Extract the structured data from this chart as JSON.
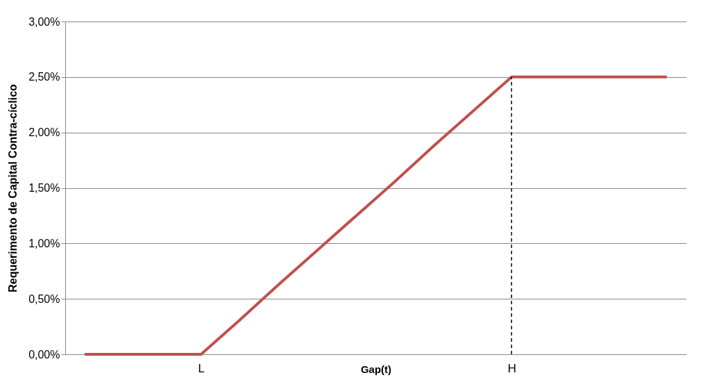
{
  "chart_data": {
    "type": "line",
    "xlabel": "Gap(t)",
    "ylabel": "Requerimento de Capital Contra-cíclico",
    "categories": [
      null,
      null,
      null,
      "L",
      null,
      null,
      null,
      null,
      null,
      null,
      null,
      "H",
      null,
      null,
      null,
      null
    ],
    "series": [
      {
        "color": "#c0504d",
        "values": [
          0,
          0,
          0,
          0,
          0.31,
          0.63,
          0.94,
          1.25,
          1.56,
          1.88,
          2.19,
          2.5,
          2.5,
          2.5,
          2.5,
          2.5
        ]
      }
    ],
    "ylim": [
      0,
      3
    ],
    "yticks": [
      {
        "value": 0,
        "label": "0,00%"
      },
      {
        "value": 0.5,
        "label": "0,50%"
      },
      {
        "value": 1,
        "label": "1,00%"
      },
      {
        "value": 1.5,
        "label": "1,50%"
      },
      {
        "value": 2,
        "label": "2,00%"
      },
      {
        "value": 2.5,
        "label": "2,50%"
      },
      {
        "value": 3,
        "label": "3,00%"
      }
    ],
    "grid": "y",
    "marker": "none",
    "line_style": "solid",
    "ref_lines": [
      {
        "axis": "x",
        "value": "H",
        "color": "#000000",
        "line_style": "dashed"
      }
    ]
  }
}
